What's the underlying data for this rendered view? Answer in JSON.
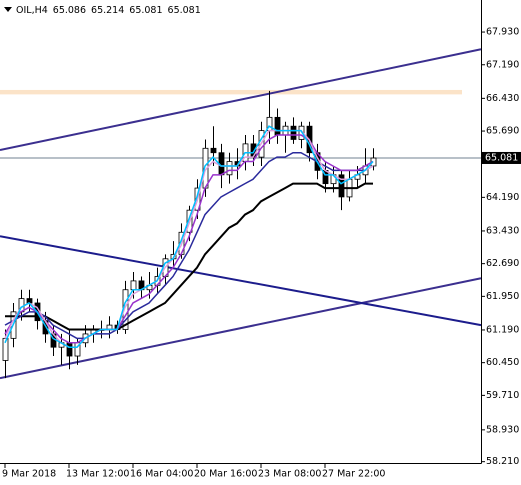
{
  "chart_data": {
    "type": "candlestick",
    "symbol": "OIL,H4",
    "header_values": [
      65.086,
      65.214,
      65.081,
      65.081
    ],
    "categories": [
      "9 Mar 2018",
      null,
      null,
      null,
      null,
      null,
      null,
      null,
      "13 Mar 12:00",
      null,
      null,
      null,
      null,
      null,
      null,
      null,
      "16 Mar 04:00",
      null,
      null,
      null,
      null,
      null,
      null,
      null,
      "20 Mar 16:00",
      null,
      null,
      null,
      null,
      null,
      null,
      null,
      "23 Mar 08:00",
      null,
      null,
      null,
      null,
      null,
      null,
      null,
      "27 Mar 22:00",
      null,
      null,
      null,
      null,
      null,
      null
    ],
    "open": [
      60.5,
      61.0,
      61.6,
      61.9,
      61.8,
      61.4,
      61.1,
      60.8,
      60.9,
      60.6,
      60.9,
      61.1,
      61.2,
      61.2,
      61.3,
      61.2,
      62.1,
      62.3,
      62.1,
      62.2,
      62.4,
      62.8,
      62.9,
      63.4,
      63.9,
      64.4,
      65.3,
      65.2,
      64.7,
      65.0,
      65.0,
      65.4,
      65.1,
      65.7,
      66.0,
      65.6,
      65.8,
      65.5,
      65.8,
      65.2,
      64.8,
      64.5,
      64.7,
      64.2,
      64.6,
      64.7,
      64.9
    ],
    "high": [
      61.2,
      61.8,
      62.1,
      62.1,
      61.9,
      61.6,
      61.3,
      61.1,
      61.2,
      61.0,
      61.3,
      61.3,
      61.4,
      61.5,
      61.4,
      62.3,
      62.5,
      62.4,
      62.5,
      62.6,
      62.9,
      63.2,
      63.6,
      64.0,
      64.6,
      65.5,
      65.8,
      65.4,
      65.2,
      65.3,
      65.6,
      65.6,
      65.9,
      66.6,
      66.2,
      65.9,
      66.0,
      65.9,
      65.9,
      65.4,
      65.0,
      64.9,
      64.8,
      64.8,
      64.9,
      65.3,
      65.3
    ],
    "low": [
      60.1,
      60.8,
      61.4,
      61.6,
      61.2,
      60.9,
      60.6,
      60.4,
      60.3,
      60.4,
      60.8,
      60.9,
      61.0,
      61.0,
      61.1,
      61.1,
      61.9,
      61.9,
      61.9,
      62.0,
      62.2,
      62.6,
      62.8,
      63.2,
      63.7,
      64.2,
      64.9,
      64.4,
      64.5,
      64.6,
      64.8,
      64.9,
      64.9,
      65.4,
      65.4,
      65.2,
      65.4,
      65.3,
      65.0,
      64.6,
      64.3,
      64.3,
      63.9,
      64.1,
      64.4,
      64.5,
      64.8
    ],
    "close": [
      61.0,
      61.6,
      61.9,
      61.8,
      61.4,
      61.1,
      60.8,
      60.9,
      60.6,
      60.9,
      61.1,
      61.2,
      61.2,
      61.3,
      61.2,
      62.1,
      62.3,
      62.1,
      62.2,
      62.4,
      62.8,
      62.9,
      63.4,
      63.9,
      64.4,
      65.3,
      65.2,
      64.7,
      65.0,
      64.9,
      65.4,
      65.1,
      65.7,
      66.0,
      65.6,
      65.8,
      65.5,
      65.8,
      65.2,
      64.8,
      64.5,
      64.7,
      64.2,
      64.6,
      64.7,
      64.9,
      65.08
    ],
    "up_color": "#ffffff",
    "down_color": "#000000",
    "indicators": [
      {
        "color": "#000000",
        "values": [
          61.5,
          61.5,
          61.5,
          61.5,
          61.5,
          61.5,
          61.4,
          61.3,
          61.2,
          61.2,
          61.2,
          61.2,
          61.2,
          61.2,
          61.2,
          61.3,
          61.4,
          61.5,
          61.6,
          61.7,
          61.8,
          62.0,
          62.2,
          62.4,
          62.6,
          62.9,
          63.1,
          63.3,
          63.5,
          63.6,
          63.8,
          63.9,
          64.1,
          64.2,
          64.3,
          64.4,
          64.5,
          64.5,
          64.5,
          64.5,
          64.4,
          64.4,
          64.4,
          64.4,
          64.4,
          64.5,
          64.5
        ]
      },
      {
        "color": "#2a2a9c",
        "values": [
          61.3,
          61.4,
          61.5,
          61.6,
          61.6,
          61.5,
          61.3,
          61.2,
          61.1,
          61.0,
          61.0,
          61.1,
          61.1,
          61.1,
          61.2,
          61.4,
          61.6,
          61.7,
          61.8,
          62.0,
          62.2,
          62.4,
          62.7,
          63.0,
          63.4,
          63.8,
          64.0,
          64.2,
          64.3,
          64.4,
          64.5,
          64.6,
          64.8,
          65.0,
          65.1,
          65.1,
          65.2,
          65.2,
          65.1,
          65.0,
          64.9,
          64.8,
          64.8,
          64.8,
          64.8,
          64.8,
          64.9
        ]
      },
      {
        "color": "#9932cc",
        "values": [
          61.1,
          61.4,
          61.6,
          61.7,
          61.6,
          61.4,
          61.2,
          61.0,
          60.9,
          60.9,
          61.0,
          61.1,
          61.2,
          61.2,
          61.2,
          61.5,
          61.8,
          61.9,
          62.0,
          62.2,
          62.4,
          62.6,
          62.9,
          63.3,
          63.8,
          64.4,
          64.7,
          64.7,
          64.8,
          64.8,
          65.0,
          65.0,
          65.3,
          65.5,
          65.6,
          65.6,
          65.6,
          65.6,
          65.5,
          65.2,
          65.0,
          64.9,
          64.8,
          64.8,
          64.8,
          64.9,
          65.0
        ]
      },
      {
        "color": "#dda0dd",
        "values": [
          61.0,
          61.4,
          61.7,
          61.8,
          61.7,
          61.4,
          61.1,
          60.9,
          60.8,
          60.8,
          61.0,
          61.1,
          61.2,
          61.2,
          61.2,
          61.7,
          62.0,
          62.1,
          62.2,
          62.3,
          62.6,
          62.8,
          63.1,
          63.6,
          64.1,
          64.8,
          65.0,
          64.9,
          64.9,
          64.9,
          65.1,
          65.1,
          65.4,
          65.7,
          65.7,
          65.7,
          65.7,
          65.7,
          65.5,
          65.1,
          64.8,
          64.7,
          64.6,
          64.6,
          64.7,
          64.8,
          64.9
        ]
      },
      {
        "color": "#00bfff",
        "values": [
          60.9,
          61.3,
          61.7,
          61.8,
          61.6,
          61.3,
          61.0,
          60.9,
          60.8,
          60.8,
          61.0,
          61.1,
          61.2,
          61.2,
          61.2,
          61.8,
          62.1,
          62.1,
          62.2,
          62.3,
          62.7,
          62.8,
          63.2,
          63.7,
          64.2,
          64.9,
          65.1,
          64.9,
          64.9,
          64.9,
          65.2,
          65.2,
          65.5,
          65.8,
          65.7,
          65.7,
          65.7,
          65.7,
          65.4,
          65.0,
          64.7,
          64.7,
          64.5,
          64.6,
          64.7,
          64.8,
          65.0
        ]
      }
    ],
    "trend_lines": [
      {
        "color": "#3b2f8f",
        "values": [
          65.26,
          67.54
        ]
      },
      {
        "color": "#3b2f8f",
        "values": [
          60.1,
          62.36
        ]
      },
      {
        "color": "#1c1c8c",
        "values": [
          63.31,
          61.3
        ]
      }
    ],
    "zones": [
      {
        "color": "#fbe3c8",
        "values": [
          66.62,
          66.52
        ]
      }
    ],
    "last_price": 65.081,
    "ylim": [
      58.18,
      68.655
    ],
    "yticks": [
      {
        "value": 67.93,
        "label": "67.930"
      },
      {
        "value": 67.19,
        "label": "67.190"
      },
      {
        "value": 66.43,
        "label": "66.430"
      },
      {
        "value": 65.69,
        "label": "65.690"
      },
      {
        "value": 64.19,
        "label": "64.190"
      },
      {
        "value": 63.43,
        "label": "63.430"
      },
      {
        "value": 62.69,
        "label": "62.690"
      },
      {
        "value": 61.95,
        "label": "61.950"
      },
      {
        "value": 61.19,
        "label": "61.190"
      },
      {
        "value": 60.45,
        "label": "60.450"
      },
      {
        "value": 59.71,
        "label": "59.710"
      },
      {
        "value": 58.93,
        "label": "58.930"
      },
      {
        "value": 58.21,
        "label": "58.210"
      }
    ]
  }
}
